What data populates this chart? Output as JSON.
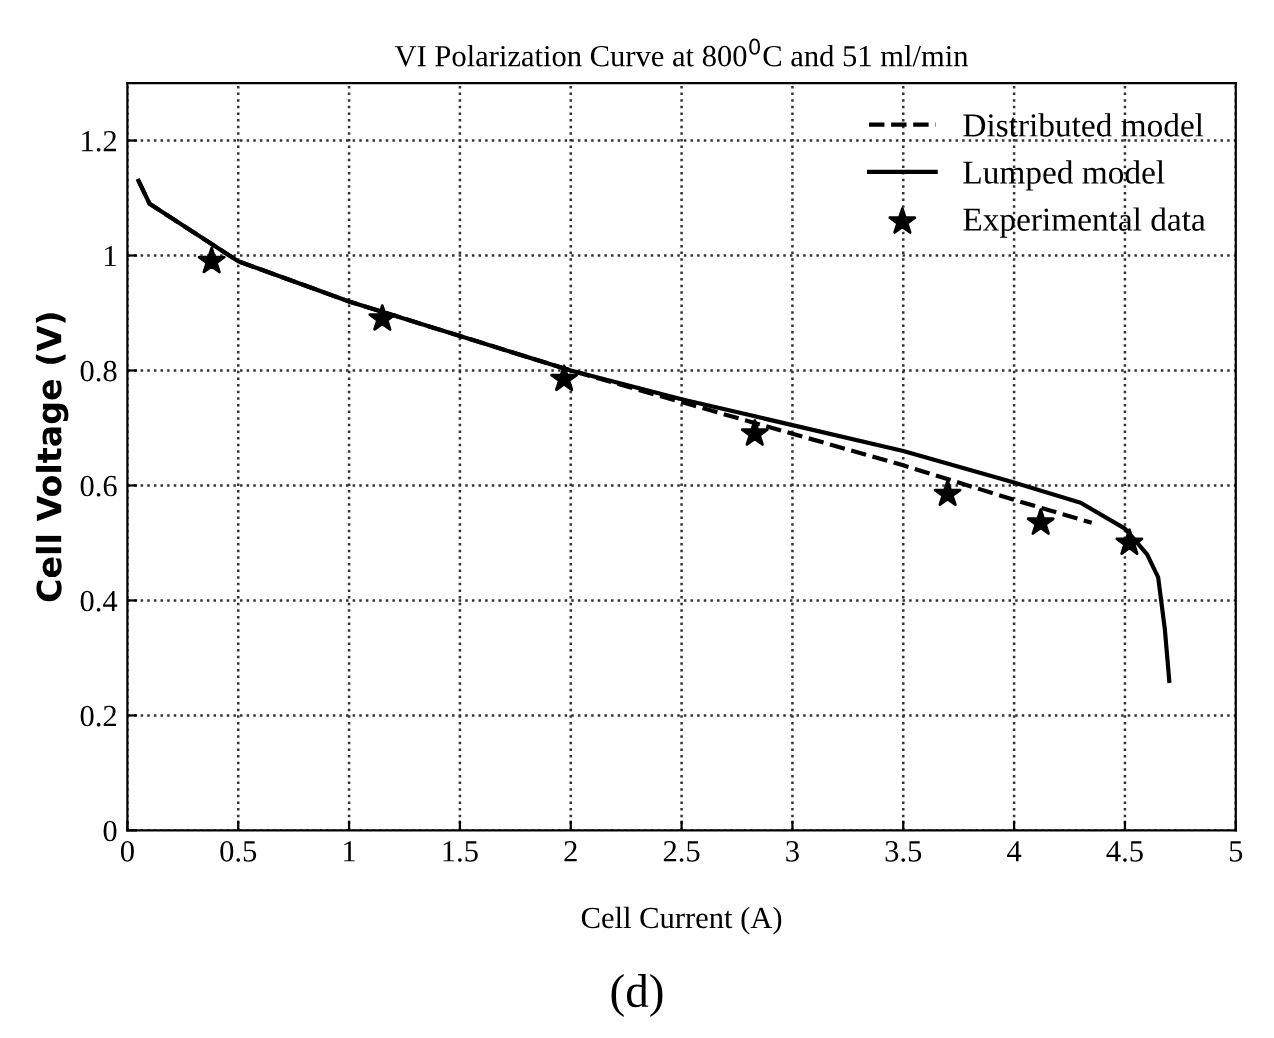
{
  "chart_data": {
    "type": "line",
    "title": "VI Polarization Curve at 800$^{0}$C and 51 ml/min",
    "xlabel": "Cell Current (A)",
    "ylabel": "Cell Voltage (V)",
    "annotations": [
      "(d)"
    ],
    "xlim": [
      0,
      5
    ],
    "ylim": [
      0,
      1.3
    ],
    "xticks": [
      0,
      0.5,
      1,
      1.5,
      2,
      2.5,
      3,
      3.5,
      4,
      4.5,
      5
    ],
    "yticks": [
      0,
      0.2,
      0.4,
      0.6,
      0.8,
      1,
      1.2
    ],
    "grid": true,
    "legend": "top right",
    "series": [
      {
        "name": "Distributed model",
        "color": "#000000",
        "line_style": "dashed",
        "marker": "none",
        "x": [
          0.05,
          0.1,
          0.3,
          0.5,
          1,
          1.5,
          2,
          2.5,
          3,
          3.5,
          4,
          4.35
        ],
        "values": [
          1.13,
          1.09,
          1.04,
          0.99,
          0.92,
          0.86,
          0.8,
          0.745,
          0.69,
          0.635,
          0.575,
          0.535
        ]
      },
      {
        "name": "Lumped model",
        "color": "#000000",
        "line_style": "solid",
        "marker": "none",
        "x": [
          0.05,
          0.1,
          0.3,
          0.5,
          1,
          1.5,
          2,
          2.5,
          3,
          3.5,
          4,
          4.3,
          4.5,
          4.6,
          4.65,
          4.68,
          4.7
        ],
        "values": [
          1.13,
          1.09,
          1.04,
          0.99,
          0.92,
          0.86,
          0.8,
          0.75,
          0.705,
          0.66,
          0.605,
          0.57,
          0.525,
          0.48,
          0.44,
          0.35,
          0.26
        ]
      },
      {
        "name": "Experimental data",
        "color": "#000000",
        "type": "scatter",
        "marker": "star",
        "x": [
          0.38,
          1.15,
          1.97,
          2.83,
          3.7,
          4.12,
          4.52
        ],
        "values": [
          0.99,
          0.89,
          0.785,
          0.69,
          0.585,
          0.535,
          0.5
        ]
      }
    ]
  }
}
